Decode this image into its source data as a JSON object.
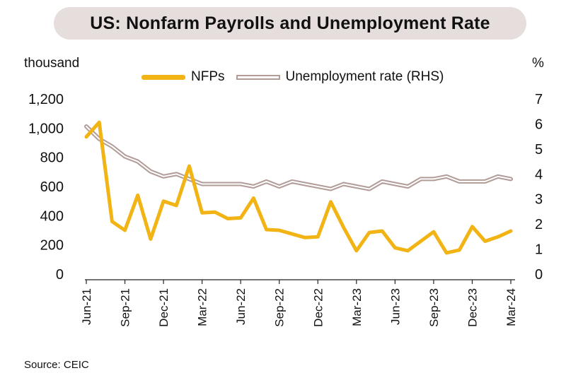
{
  "title": "US: Nonfarm Payrolls and Unemployment Rate",
  "source": "Source: CEIC",
  "chart_data": {
    "type": "line",
    "left_unit": "thousand",
    "right_unit": "%",
    "y_left_ticks": [
      "0",
      "200",
      "400",
      "600",
      "800",
      "1,000",
      "1,200"
    ],
    "y_right_ticks": [
      "0",
      "1",
      "2",
      "3",
      "4",
      "5",
      "6",
      "7"
    ],
    "ylim_left": [
      0,
      1200
    ],
    "ylim_right": [
      0,
      7
    ],
    "legend_position": "top",
    "x_tick_labels": [
      {
        "index": 0,
        "label": "Jun-21"
      },
      {
        "index": 3,
        "label": "Sep-21"
      },
      {
        "index": 6,
        "label": "Dec-21"
      },
      {
        "index": 9,
        "label": "Mar-22"
      },
      {
        "index": 12,
        "label": "Jun-22"
      },
      {
        "index": 15,
        "label": "Sep-22"
      },
      {
        "index": 18,
        "label": "Dec-22"
      },
      {
        "index": 21,
        "label": "Mar-23"
      },
      {
        "index": 24,
        "label": "Jun-23"
      },
      {
        "index": 27,
        "label": "Sep-23"
      },
      {
        "index": 30,
        "label": "Dec-23"
      },
      {
        "index": 33,
        "label": "Mar-24"
      }
    ],
    "series": [
      {
        "name": "NFPs",
        "axis": "left",
        "color": "#f2b414",
        "values": [
          940,
          1040,
          360,
          300,
          540,
          240,
          500,
          470,
          740,
          420,
          425,
          380,
          385,
          520,
          305,
          300,
          275,
          250,
          255,
          495,
          320,
          160,
          285,
          295,
          180,
          160,
          225,
          290,
          145,
          165,
          325,
          225,
          255,
          295
        ]
      },
      {
        "name": "Unemployment rate (RHS)",
        "axis": "right",
        "color": "#b19c98",
        "values": [
          5.9,
          5.4,
          5.1,
          4.7,
          4.5,
          4.1,
          3.9,
          4.0,
          3.8,
          3.6,
          3.6,
          3.6,
          3.6,
          3.5,
          3.7,
          3.5,
          3.7,
          3.6,
          3.5,
          3.4,
          3.6,
          3.5,
          3.4,
          3.7,
          3.6,
          3.5,
          3.8,
          3.8,
          3.9,
          3.7,
          3.7,
          3.7,
          3.9,
          3.8
        ]
      }
    ]
  }
}
